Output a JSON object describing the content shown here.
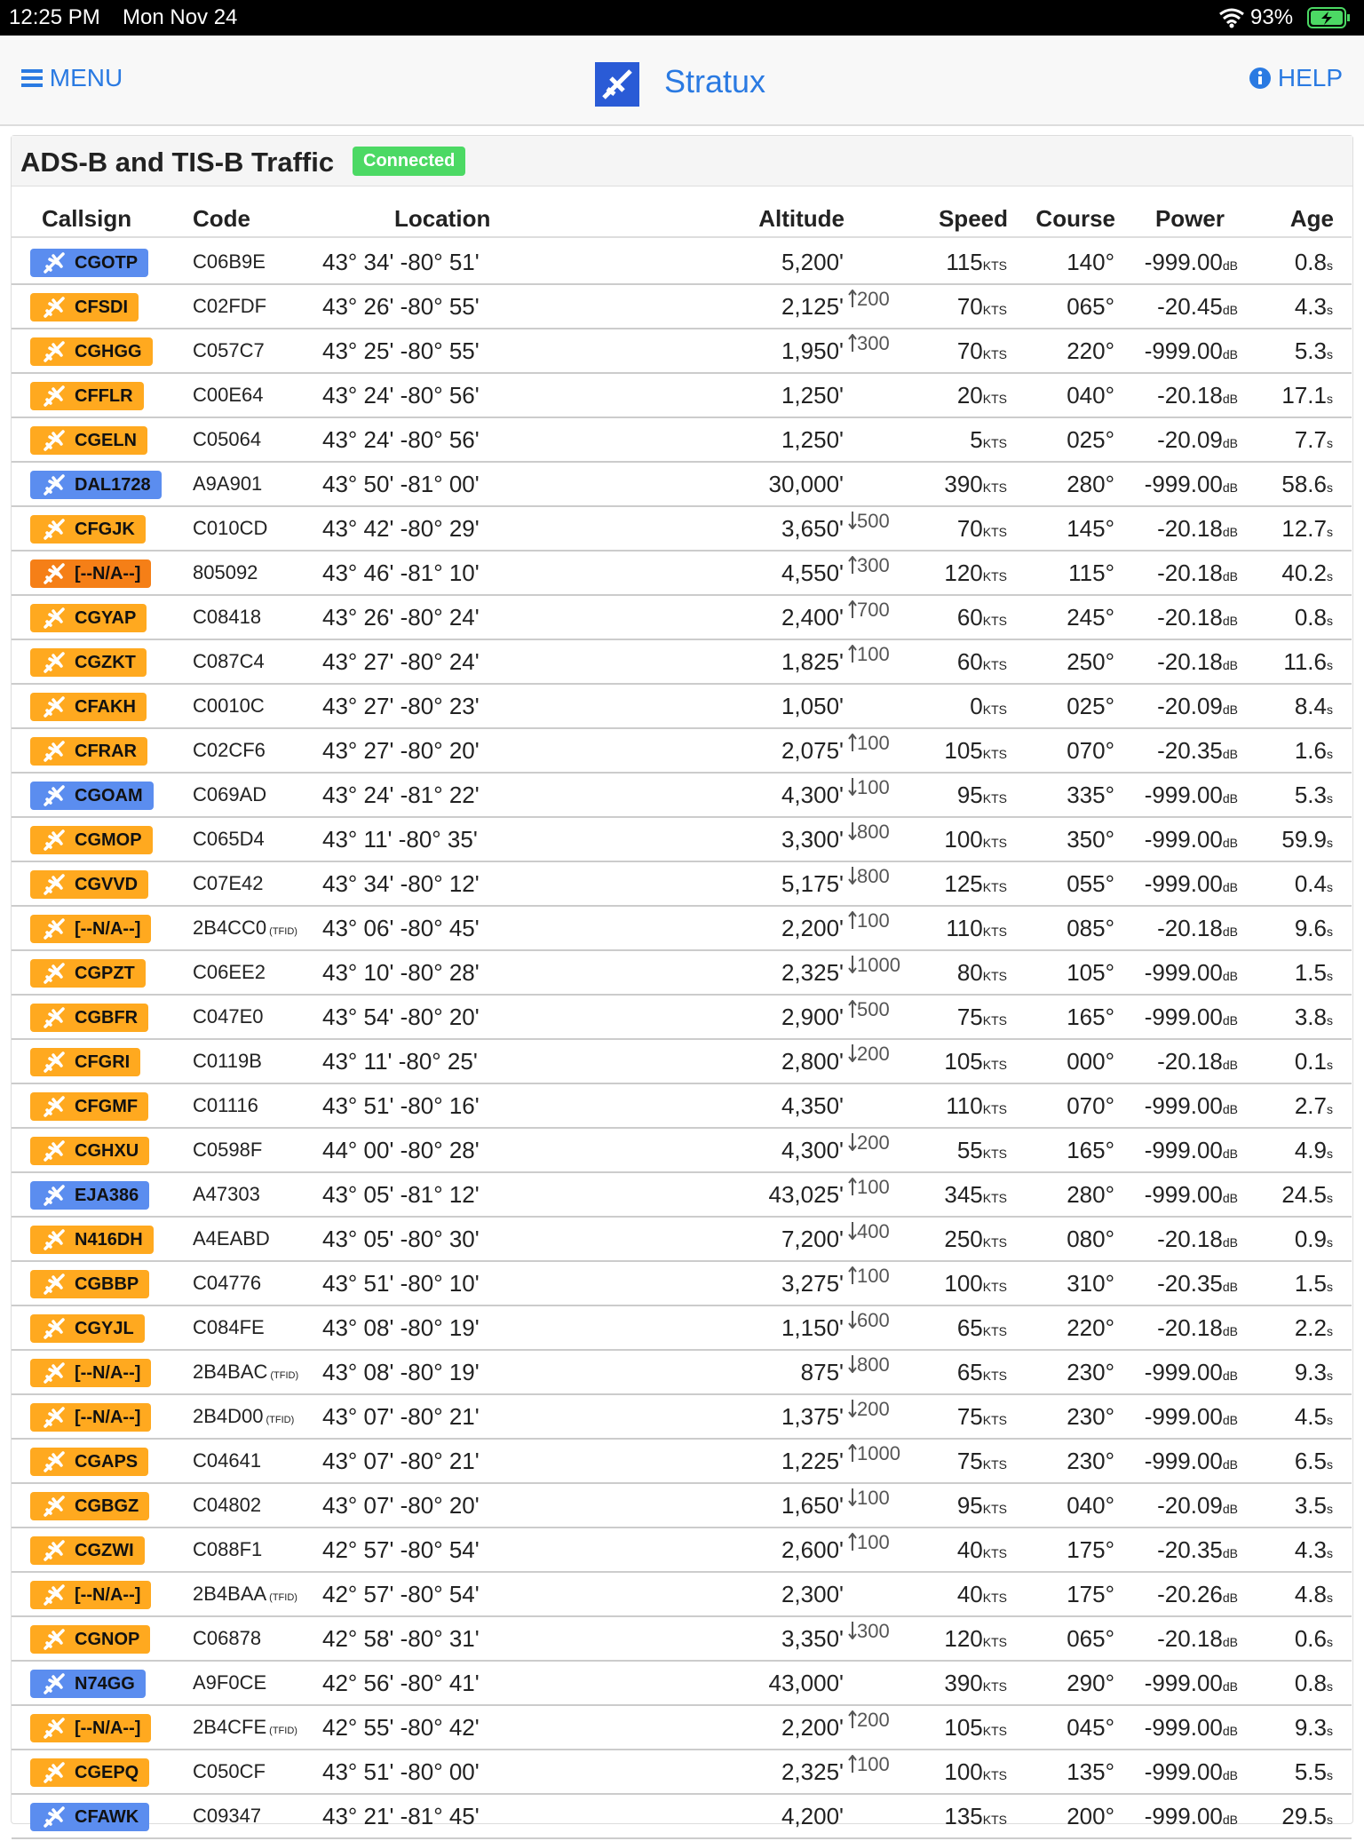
{
  "status_bar": {
    "time": "12:25 PM",
    "date": "Mon Nov 24",
    "battery": "93%"
  },
  "header": {
    "menu": "MENU",
    "title": "Stratux",
    "help": "HELP"
  },
  "panel": {
    "title": "ADS-B and TIS-B Traffic",
    "status": "Connected"
  },
  "units": {
    "speed": "KTS",
    "power": "dB",
    "age": "s"
  },
  "table": {
    "columns": [
      "Callsign",
      "Code",
      "Location",
      "Altitude",
      "Speed",
      "Course",
      "Power",
      "Age"
    ],
    "rows": [
      [
        "CGOTP",
        "blue",
        "C06B9E",
        null,
        "43° 34' -80° 51'",
        "5,200'",
        null,
        null,
        "115",
        "140°",
        "-999.00",
        "0.8"
      ],
      [
        "CFSDI",
        "orange",
        "C02FDF",
        null,
        "43° 26' -80° 55'",
        "2,125'",
        "up",
        "200",
        "70",
        "065°",
        "-20.45",
        "4.3"
      ],
      [
        "CGHGG",
        "orange",
        "C057C7",
        null,
        "43° 25' -80° 55'",
        "1,950'",
        "up",
        "300",
        "70",
        "220°",
        "-999.00",
        "5.3"
      ],
      [
        "CFFLR",
        "orange",
        "C00E64",
        null,
        "43° 24' -80° 56'",
        "1,250'",
        null,
        null,
        "20",
        "040°",
        "-20.18",
        "17.1"
      ],
      [
        "CGELN",
        "orange",
        "C05064",
        null,
        "43° 24' -80° 56'",
        "1,250'",
        null,
        null,
        "5",
        "025°",
        "-20.09",
        "7.7"
      ],
      [
        "DAL1728",
        "blue",
        "A9A901",
        null,
        "43° 50' -81° 00'",
        "30,000'",
        null,
        null,
        "390",
        "280°",
        "-999.00",
        "58.6"
      ],
      [
        "CFGJK",
        "orange",
        "C010CD",
        null,
        "43° 42' -80° 29'",
        "3,650'",
        "down",
        "500",
        "70",
        "145°",
        "-20.18",
        "12.7"
      ],
      [
        "[--N/A--]",
        "dark",
        "805092",
        null,
        "43° 46' -81° 10'",
        "4,550'",
        "up",
        "300",
        "120",
        "115°",
        "-20.18",
        "40.2"
      ],
      [
        "CGYAP",
        "orange",
        "C08418",
        null,
        "43° 26' -80° 24'",
        "2,400'",
        "up",
        "700",
        "60",
        "245°",
        "-20.18",
        "0.8"
      ],
      [
        "CGZKT",
        "orange",
        "C087C4",
        null,
        "43° 27' -80° 24'",
        "1,825'",
        "up",
        "100",
        "60",
        "250°",
        "-20.18",
        "11.6"
      ],
      [
        "CFAKH",
        "orange",
        "C0010C",
        null,
        "43° 27' -80° 23'",
        "1,050'",
        null,
        null,
        "0",
        "025°",
        "-20.09",
        "8.4"
      ],
      [
        "CFRAR",
        "orange",
        "C02CF6",
        null,
        "43° 27' -80° 20'",
        "2,075'",
        "up",
        "100",
        "105",
        "070°",
        "-20.35",
        "1.6"
      ],
      [
        "CGOAM",
        "blue",
        "C069AD",
        null,
        "43° 24' -81° 22'",
        "4,300'",
        "down",
        "100",
        "95",
        "335°",
        "-999.00",
        "5.3"
      ],
      [
        "CGMOP",
        "orange",
        "C065D4",
        null,
        "43° 11' -80° 35'",
        "3,300'",
        "down",
        "800",
        "100",
        "350°",
        "-999.00",
        "59.9"
      ],
      [
        "CGVVD",
        "orange",
        "C07E42",
        null,
        "43° 34' -80° 12'",
        "5,175'",
        "down",
        "800",
        "125",
        "055°",
        "-999.00",
        "0.4"
      ],
      [
        "[--N/A--]",
        "orange",
        "2B4CC0",
        "(TFID)",
        "43° 06' -80° 45'",
        "2,200'",
        "up",
        "100",
        "110",
        "085°",
        "-20.18",
        "9.6"
      ],
      [
        "CGPZT",
        "orange",
        "C06EE2",
        null,
        "43° 10' -80° 28'",
        "2,325'",
        "down",
        "1000",
        "80",
        "105°",
        "-999.00",
        "1.5"
      ],
      [
        "CGBFR",
        "orange",
        "C047E0",
        null,
        "43° 54' -80° 20'",
        "2,900'",
        "up",
        "500",
        "75",
        "165°",
        "-999.00",
        "3.8"
      ],
      [
        "CFGRI",
        "orange",
        "C0119B",
        null,
        "43° 11' -80° 25'",
        "2,800'",
        "down",
        "200",
        "105",
        "000°",
        "-20.18",
        "0.1"
      ],
      [
        "CFGMF",
        "orange",
        "C01116",
        null,
        "43° 51' -80° 16'",
        "4,350'",
        null,
        null,
        "110",
        "070°",
        "-999.00",
        "2.7"
      ],
      [
        "CGHXU",
        "orange",
        "C0598F",
        null,
        "44° 00' -80° 28'",
        "4,300'",
        "down",
        "200",
        "55",
        "165°",
        "-999.00",
        "4.9"
      ],
      [
        "EJA386",
        "blue",
        "A47303",
        null,
        "43° 05' -81° 12'",
        "43,025'",
        "up",
        "100",
        "345",
        "280°",
        "-999.00",
        "24.5"
      ],
      [
        "N416DH",
        "orange",
        "A4EABD",
        null,
        "43° 05' -80° 30'",
        "7,200'",
        "down",
        "400",
        "250",
        "080°",
        "-20.18",
        "0.9"
      ],
      [
        "CGBBP",
        "orange",
        "C04776",
        null,
        "43° 51' -80° 10'",
        "3,275'",
        "up",
        "100",
        "100",
        "310°",
        "-20.35",
        "1.5"
      ],
      [
        "CGYJL",
        "orange",
        "C084FE",
        null,
        "43° 08' -80° 19'",
        "1,150'",
        "down",
        "600",
        "65",
        "220°",
        "-20.18",
        "2.2"
      ],
      [
        "[--N/A--]",
        "orange",
        "2B4BAC",
        "(TFID)",
        "43° 08' -80° 19'",
        "875'",
        "down",
        "800",
        "65",
        "230°",
        "-999.00",
        "9.3"
      ],
      [
        "[--N/A--]",
        "orange",
        "2B4D00",
        "(TFID)",
        "43° 07' -80° 21'",
        "1,375'",
        "down",
        "200",
        "75",
        "230°",
        "-999.00",
        "4.5"
      ],
      [
        "CGAPS",
        "orange",
        "C04641",
        null,
        "43° 07' -80° 21'",
        "1,225'",
        "up",
        "1000",
        "75",
        "230°",
        "-999.00",
        "6.5"
      ],
      [
        "CGBGZ",
        "orange",
        "C04802",
        null,
        "43° 07' -80° 20'",
        "1,650'",
        "down",
        "100",
        "95",
        "040°",
        "-20.09",
        "3.5"
      ],
      [
        "CGZWI",
        "orange",
        "C088F1",
        null,
        "42° 57' -80° 54'",
        "2,600'",
        "up",
        "100",
        "40",
        "175°",
        "-20.35",
        "4.3"
      ],
      [
        "[--N/A--]",
        "orange",
        "2B4BAA",
        "(TFID)",
        "42° 57' -80° 54'",
        "2,300'",
        null,
        null,
        "40",
        "175°",
        "-20.26",
        "4.8"
      ],
      [
        "CGNOP",
        "orange",
        "C06878",
        null,
        "42° 58' -80° 31'",
        "3,350'",
        "down",
        "300",
        "120",
        "065°",
        "-20.18",
        "0.6"
      ],
      [
        "N74GG",
        "blue",
        "A9F0CE",
        null,
        "42° 56' -80° 41'",
        "43,000'",
        null,
        null,
        "390",
        "290°",
        "-999.00",
        "0.8"
      ],
      [
        "[--N/A--]",
        "orange",
        "2B4CFE",
        "(TFID)",
        "42° 55' -80° 42'",
        "2,200'",
        "up",
        "200",
        "105",
        "045°",
        "-999.00",
        "9.3"
      ],
      [
        "CGEPQ",
        "orange",
        "C050CF",
        null,
        "43° 51' -80° 00'",
        "2,325'",
        "up",
        "100",
        "100",
        "135°",
        "-999.00",
        "5.5"
      ],
      [
        "CFAWK",
        "blue",
        "C09347",
        null,
        "43° 21' -81° 45'",
        "4,200'",
        null,
        null,
        "135",
        "200°",
        "-999.00",
        "29.5"
      ]
    ]
  }
}
